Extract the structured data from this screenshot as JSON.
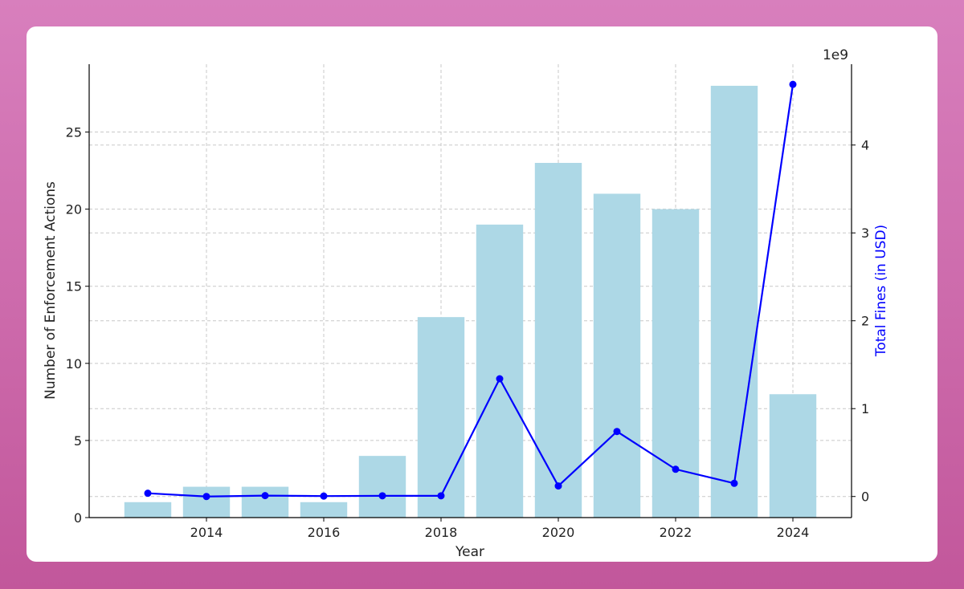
{
  "chart_data": {
    "type": "bar+line",
    "title": "",
    "xlabel": "Year",
    "ylabel_left": "Number of Enforcement Actions",
    "ylabel_right": "Total Fines (in USD)",
    "right_axis_offset_text": "1e9",
    "categories": [
      2013,
      2014,
      2015,
      2016,
      2017,
      2018,
      2019,
      2020,
      2021,
      2022,
      2023,
      2024
    ],
    "bar_values": [
      1,
      2,
      2,
      1,
      4,
      13,
      19,
      23,
      21,
      20,
      28,
      8
    ],
    "line_values": [
      37000000.0,
      0.0,
      10000000.0,
      5000000.0,
      8000000.0,
      8000000.0,
      1340000000.0,
      120000000.0,
      740000000.0,
      310000000.0,
      150000000.0,
      4690000000.0
    ],
    "xlim": [
      2012.0,
      2025.0
    ],
    "ylim_left": [
      0,
      29.4
    ],
    "ylim_right": [
      -240000000.0,
      4920000000.0
    ],
    "xticks": [
      2014,
      2016,
      2018,
      2020,
      2022,
      2024
    ],
    "yticks_left": [
      0,
      5,
      10,
      15,
      20,
      25
    ],
    "yticks_right": [
      0,
      1,
      2,
      3,
      4
    ],
    "bar_color": "#add8e6",
    "line_color": "#0000ff",
    "right_label_color": "#0000ff",
    "grid": true
  }
}
